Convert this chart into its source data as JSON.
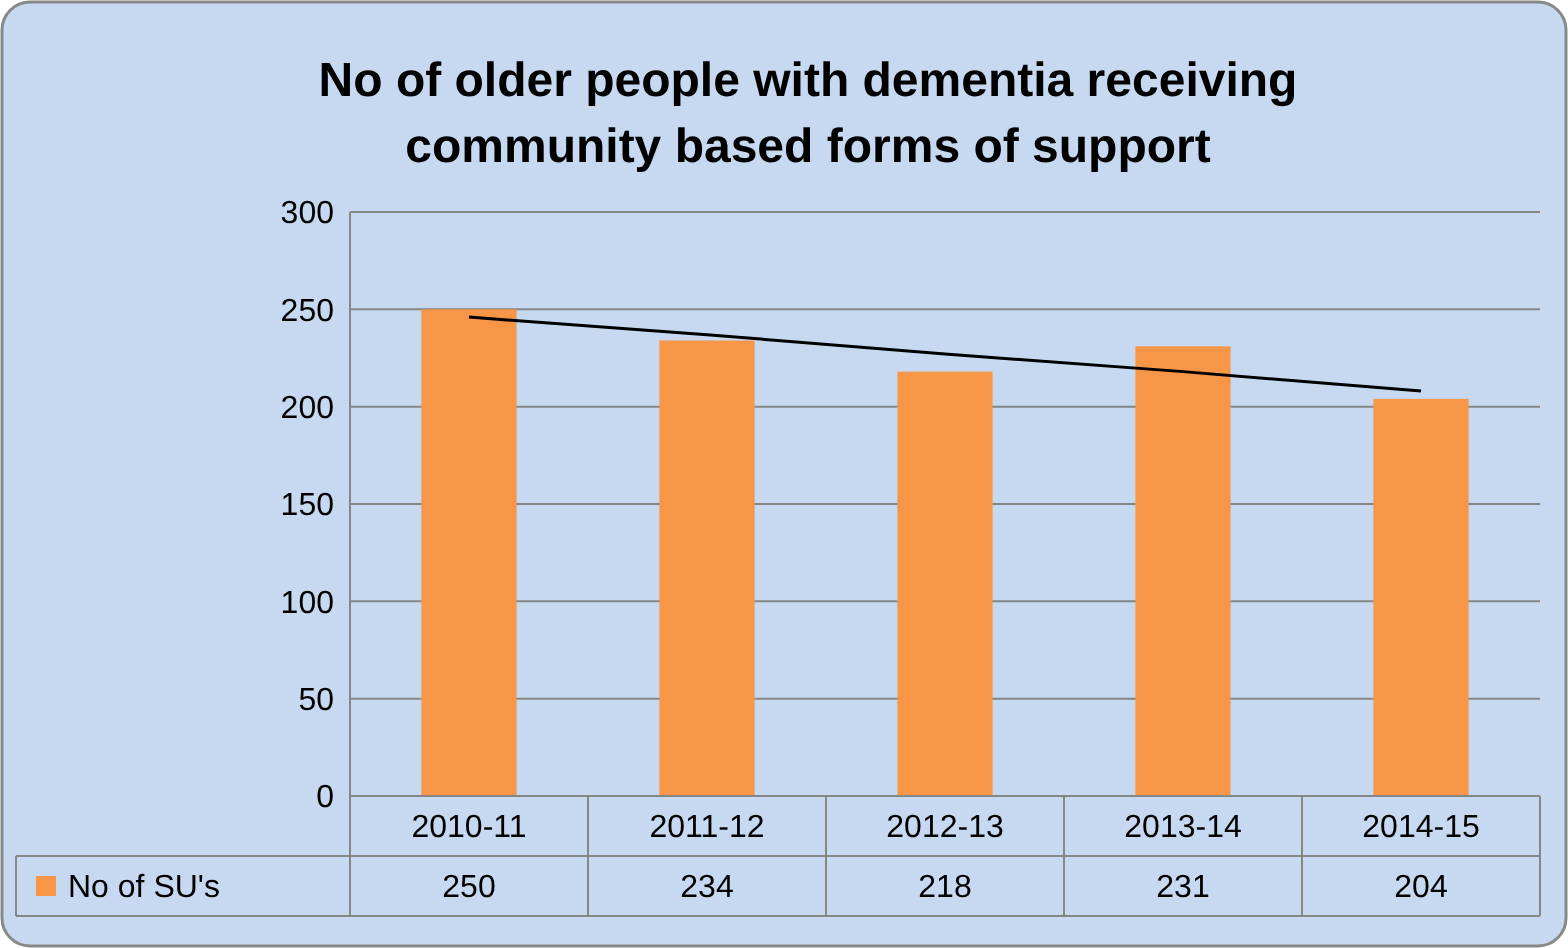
{
  "chart_data": {
    "type": "bar",
    "title": "No of older people with dementia receiving community based forms of support",
    "categories": [
      "2010-11",
      "2011-12",
      "2012-13",
      "2013-14",
      "2014-15"
    ],
    "series": [
      {
        "name": "No of SU's",
        "color": "#f79646",
        "values": [
          250,
          234,
          218,
          231,
          204
        ],
        "value_labels": [
          "250",
          "234",
          "218",
          "231",
          "204"
        ]
      },
      {
        "type": "line",
        "color": "#000000",
        "values": [
          246,
          237,
          227,
          218,
          208
        ]
      }
    ],
    "ylim": [
      0,
      300
    ],
    "yticks": [
      0,
      50,
      100,
      150,
      200,
      250,
      300
    ],
    "grid": "y",
    "legend": "bottom"
  }
}
